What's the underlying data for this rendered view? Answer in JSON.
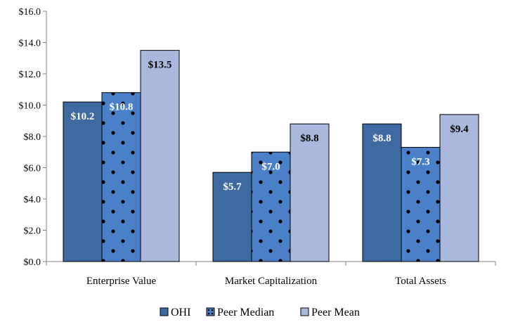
{
  "chart_data": {
    "type": "bar",
    "title": "",
    "xlabel": "",
    "ylabel": "",
    "ylim": [
      0,
      16
    ],
    "yticks": [
      0,
      2,
      4,
      6,
      8,
      10,
      12,
      14,
      16
    ],
    "ytick_labels": [
      "$0.0",
      "$2.0",
      "$4.0",
      "$6.0",
      "$8.0",
      "$10.0",
      "$12.0",
      "$14.0",
      "$16.0"
    ],
    "categories": [
      "Enterprise Value",
      "Market Capitalization",
      "Total Assets"
    ],
    "series": [
      {
        "name": "OHI",
        "values": [
          10.2,
          5.7,
          8.8
        ],
        "labels": [
          "$10.2",
          "$5.7",
          "$8.8"
        ],
        "color": "#3d6aa0",
        "pattern": "solid",
        "label_color": "#ffffff"
      },
      {
        "name": "Peer Median",
        "values": [
          10.8,
          7.0,
          7.3
        ],
        "labels": [
          "$10.8",
          "$7.0",
          "$7.3"
        ],
        "color": "#4a80c8",
        "pattern": "dots",
        "label_color": "#ffffff"
      },
      {
        "name": "Peer Mean",
        "values": [
          13.5,
          8.8,
          9.4
        ],
        "labels": [
          "$13.5",
          "$8.8",
          "$9.4"
        ],
        "color": "#a9b8dc",
        "pattern": "solid",
        "label_color": "#000000"
      }
    ],
    "grid": false,
    "legend_position": "bottom-center"
  }
}
